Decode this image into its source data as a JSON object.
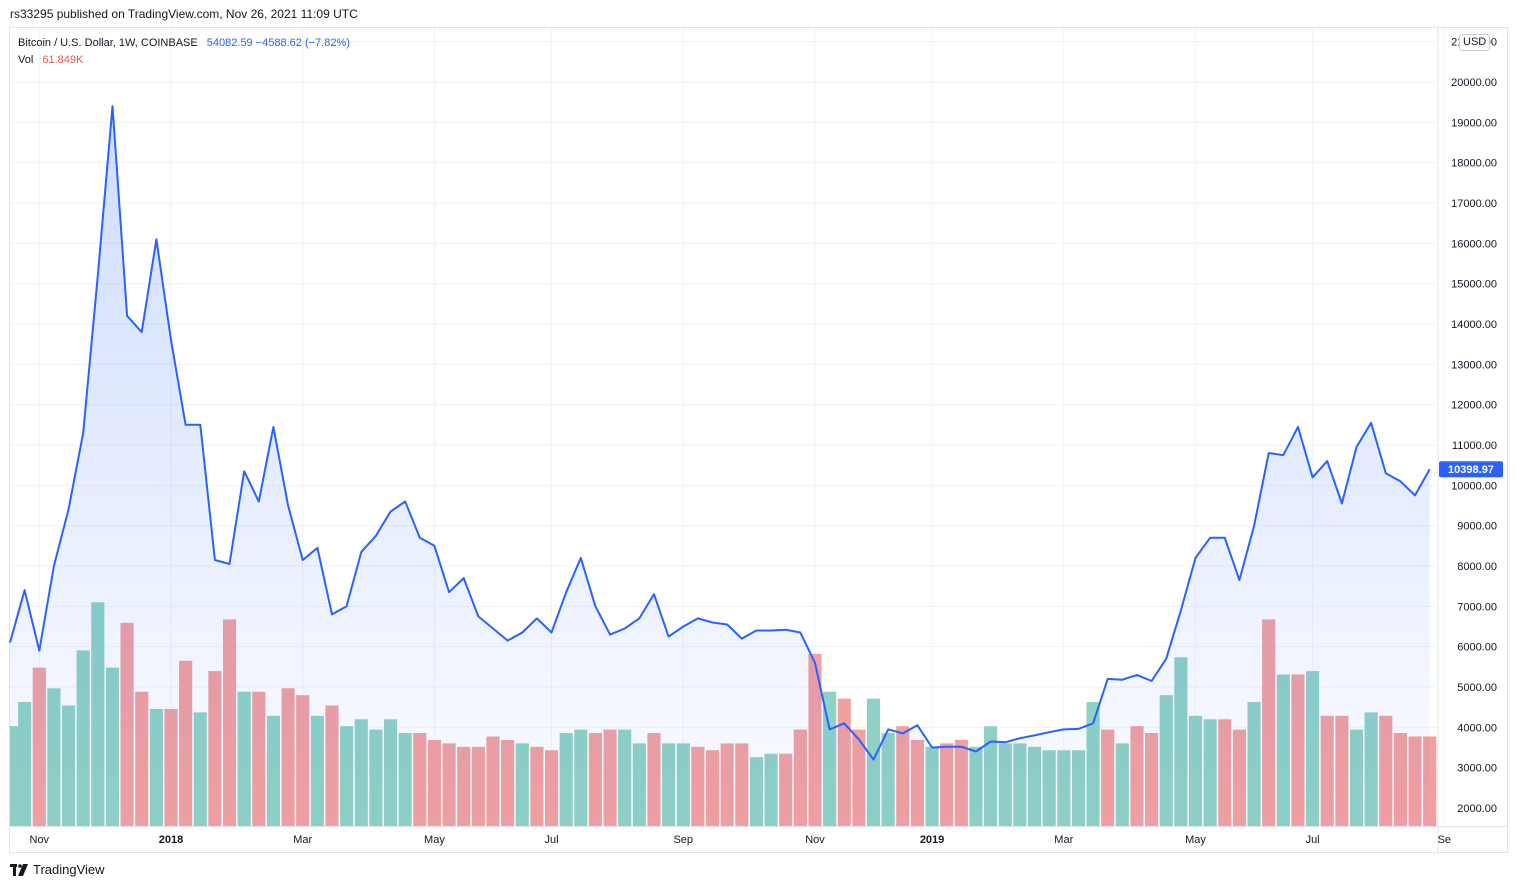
{
  "header": {
    "publisher_text": "rs33295 published on TradingView.com, Nov 26, 2021 11:09 UTC"
  },
  "legend": {
    "symbol": "Bitcoin / U.S. Dollar, 1W, COINBASE",
    "values": "54082.59  −4588.62 (−7.82%)",
    "vol_label": "Vol",
    "vol_value": "61.849K"
  },
  "currency_badge": "USD",
  "footer": {
    "brand": "TradingView"
  },
  "colors": {
    "line": "#2962ff",
    "volume_up": "#8fd1c4",
    "volume_down": "#f1a0a0",
    "grid": "#f0f3fa",
    "axis_text": "#131722"
  },
  "chart_data": {
    "type": "area",
    "title": "Bitcoin / U.S. Dollar, 1W, COINBASE",
    "ylim": [
      1500,
      21000
    ],
    "y_ticks": [
      "2000.00",
      "3000.00",
      "4000.00",
      "5000.00",
      "6000.00",
      "7000.00",
      "8000.00",
      "9000.00",
      "10000.00",
      "11000.00",
      "12000.00",
      "13000.00",
      "14000.00",
      "15000.00",
      "16000.00",
      "17000.00",
      "18000.00",
      "19000.00",
      "20000.00",
      "21000.00"
    ],
    "x_tick_labels": [
      {
        "label": "Nov",
        "index": 2,
        "bold": false
      },
      {
        "label": "2018",
        "index": 11,
        "bold": true
      },
      {
        "label": "Mar",
        "index": 20,
        "bold": false
      },
      {
        "label": "May",
        "index": 29,
        "bold": false
      },
      {
        "label": "Jul",
        "index": 37,
        "bold": false
      },
      {
        "label": "Sep",
        "index": 46,
        "bold": false
      },
      {
        "label": "Nov",
        "index": 55,
        "bold": false
      },
      {
        "label": "2019",
        "index": 63,
        "bold": true
      },
      {
        "label": "Mar",
        "index": 72,
        "bold": false
      },
      {
        "label": "May",
        "index": 81,
        "bold": false
      },
      {
        "label": "Jul",
        "index": 89,
        "bold": false
      },
      {
        "label": "Se",
        "index": 98,
        "bold": false
      }
    ],
    "last_price_label": "10398.97",
    "last_price": 10398.97,
    "close": [
      6100,
      7400,
      5900,
      8000,
      9400,
      11300,
      15200,
      19400,
      14200,
      13800,
      16100,
      13600,
      11500,
      11500,
      8150,
      8050,
      10350,
      9600,
      11450,
      9500,
      8150,
      8450,
      6800,
      7000,
      8350,
      8750,
      9350,
      9600,
      8700,
      8500,
      7350,
      7700,
      6750,
      6450,
      6150,
      6350,
      6700,
      6350,
      7350,
      8200,
      7000,
      6300,
      6450,
      6700,
      7300,
      6250,
      6500,
      6700,
      6600,
      6550,
      6200,
      6400,
      6400,
      6420,
      6350,
      5600,
      3950,
      4100,
      3700,
      3200,
      3950,
      3850,
      4050,
      3500,
      3520,
      3520,
      3400,
      3650,
      3630,
      3730,
      3800,
      3880,
      3950,
      3960,
      4100,
      5200,
      5180,
      5300,
      5150,
      5700,
      6900,
      8200,
      8700,
      8700,
      7650,
      9000,
      10800,
      10750,
      11450,
      10200,
      10600,
      9550,
      10950,
      11550,
      10300,
      10100,
      9750,
      10398.97
    ],
    "vol_max": 7000,
    "volume": [
      2900,
      3600,
      4600,
      4000,
      3500,
      5100,
      6500,
      4600,
      5900,
      3900,
      3400,
      3400,
      4800,
      3300,
      4500,
      6000,
      3900,
      3900,
      3200,
      4000,
      3800,
      3200,
      3500,
      2900,
      3100,
      2800,
      3100,
      2700,
      2700,
      2500,
      2400,
      2300,
      2300,
      2600,
      2500,
      2400,
      2300,
      2200,
      2700,
      2800,
      2700,
      2800,
      2800,
      2400,
      2700,
      2400,
      2400,
      2300,
      2200,
      2400,
      2400,
      2000,
      2100,
      2100,
      2800,
      5000,
      3900,
      3700,
      2800,
      3700,
      2700,
      2900,
      2500,
      2300,
      2400,
      2500,
      2300,
      2900,
      2400,
      2400,
      2300,
      2200,
      2200,
      2200,
      3600,
      2800,
      2400,
      2900,
      2700,
      3800,
      4900,
      3200,
      3100,
      3100,
      2800,
      3600,
      6000,
      4400,
      4400,
      4500,
      3200,
      3200,
      2800,
      3300,
      3200,
      2700,
      2600,
      2600
    ],
    "volume_up": [
      true,
      true,
      false,
      true,
      true,
      true,
      true,
      true,
      false,
      false,
      true,
      false,
      false,
      true,
      false,
      false,
      true,
      false,
      true,
      false,
      false,
      true,
      false,
      true,
      true,
      true,
      true,
      true,
      false,
      false,
      false,
      false,
      false,
      false,
      false,
      true,
      false,
      false,
      true,
      true,
      false,
      false,
      true,
      true,
      false,
      true,
      true,
      false,
      false,
      false,
      false,
      true,
      true,
      false,
      false,
      false,
      true,
      false,
      false,
      true,
      true,
      false,
      false,
      true,
      false,
      false,
      true,
      true,
      true,
      true,
      true,
      true,
      true,
      true,
      true,
      false,
      true,
      false,
      false,
      true,
      true,
      true,
      true,
      false,
      false,
      true,
      false,
      true,
      false,
      true,
      false,
      false,
      true,
      true,
      false,
      false,
      false,
      false
    ]
  }
}
